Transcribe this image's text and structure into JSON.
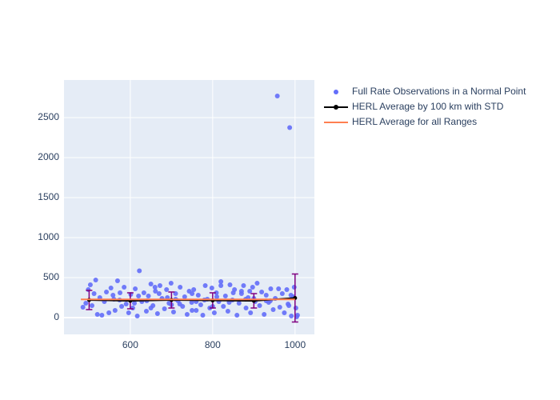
{
  "chart_data": {
    "type": "scatter",
    "xlim": [
      439,
      1047
    ],
    "ylim": [
      -210,
      2970
    ],
    "xticks": [
      600,
      800,
      1000
    ],
    "yticks": [
      0,
      500,
      1000,
      1500,
      2000,
      2500
    ],
    "grid": true,
    "background": "#e5ecf6",
    "legend": "right",
    "series": [
      {
        "name": "Full Rate Observations in a Normal Point",
        "color": "#636efa",
        "mode": "markers",
        "x": [
          485,
          492,
          498,
          503,
          507,
          512,
          516,
          520,
          526,
          531,
          537,
          542,
          548,
          553,
          558,
          563,
          569,
          574,
          579,
          585,
          590,
          596,
          601,
          606,
          612,
          617,
          622,
          628,
          633,
          639,
          644,
          650,
          655,
          661,
          666,
          672,
          677,
          683,
          688,
          694,
          699,
          705,
          710,
          716,
          721,
          727,
          732,
          738,
          743,
          749,
          754,
          760,
          765,
          771,
          776,
          782,
          787,
          793,
          798,
          804,
          809,
          815,
          820,
          826,
          831,
          837,
          842,
          848,
          853,
          859,
          864,
          870,
          875,
          881,
          886,
          892,
          897,
          903,
          908,
          914,
          919,
          925,
          930,
          936,
          941,
          947,
          952,
          957,
          963,
          969,
          974,
          980,
          987,
          991,
          996,
          1002,
          1006,
          1004,
          998,
          983,
          560,
          575,
          610,
          640,
          660,
          690,
          720,
          750,
          780,
          810,
          840,
          870,
          900,
          930,
          960,
          990,
          650,
          700,
          750,
          800,
          850,
          880,
          620,
          670,
          710,
          760,
          820,
          890,
          940,
          985
        ],
        "values": [
          130,
          180,
          350,
          410,
          150,
          300,
          470,
          40,
          250,
          30,
          200,
          320,
          60,
          370,
          280,
          90,
          460,
          220,
          140,
          380,
          170,
          60,
          290,
          120,
          360,
          20,
          585,
          200,
          310,
          80,
          270,
          420,
          150,
          330,
          50,
          400,
          240,
          110,
          350,
          180,
          430,
          70,
          300,
          210,
          380,
          140,
          260,
          40,
          330,
          190,
          350,
          90,
          280,
          160,
          30,
          400,
          230,
          120,
          370,
          60,
          310,
          200,
          450,
          140,
          270,
          80,
          410,
          220,
          350,
          30,
          180,
          300,
          400,
          120,
          250,
          60,
          380,
          200,
          430,
          150,
          320,
          40,
          280,
          190,
          360,
          100,
          240,
          2770,
          130,
          300,
          60,
          350,
          2375,
          20,
          260,
          120,
          30,
          10,
          380,
          170,
          230,
          310,
          180,
          210,
          380,
          250,
          170,
          300,
          220,
          260,
          190,
          330,
          240,
          210,
          360,
          280,
          120,
          160,
          90,
          140,
          310,
          230,
          270,
          300,
          230,
          200,
          400,
          330,
          210,
          150
        ]
      },
      {
        "name": "HERL Average by 100 km with STD",
        "color": "#000000",
        "error_color": "#800080",
        "mode": "lines+markers",
        "x": [
          500,
          600,
          700,
          800,
          900,
          1000
        ],
        "values": [
          220,
          210,
          220,
          215,
          210,
          245
        ],
        "errors": [
          120,
          100,
          100,
          95,
          90,
          300
        ]
      },
      {
        "name": "HERL Average for all Ranges",
        "color": "#ff7f50",
        "mode": "lines",
        "x": [
          480,
          1000
        ],
        "values": [
          228,
          228
        ]
      }
    ]
  }
}
